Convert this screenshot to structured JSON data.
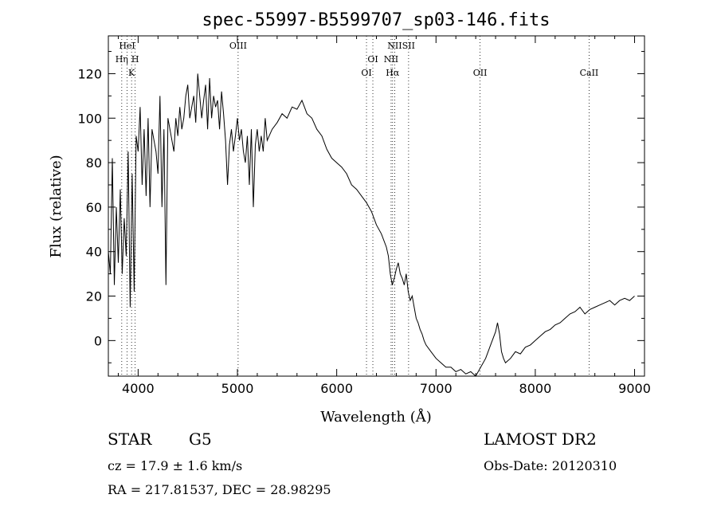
{
  "chart_data": {
    "type": "line",
    "title": "spec-55997-B5599707_sp03-146.fits",
    "xlabel": "Wavelength (Å)",
    "ylabel": "Flux (relative)",
    "xlim": [
      3700,
      9100
    ],
    "ylim": [
      -16,
      137
    ],
    "x_ticks": [
      4000,
      5000,
      6000,
      7000,
      8000,
      9000
    ],
    "y_ticks": [
      0,
      20,
      40,
      60,
      80,
      100,
      120
    ],
    "grid": false,
    "legend": "none",
    "series": [
      {
        "x": [
          3700,
          3720,
          3740,
          3760,
          3780,
          3800,
          3820,
          3840,
          3860,
          3880,
          3900,
          3920,
          3940,
          3960,
          3980,
          4000,
          4020,
          4040,
          4060,
          4080,
          4100,
          4120,
          4140,
          4160,
          4180,
          4200,
          4220,
          4240,
          4260,
          4280,
          4300,
          4320,
          4340,
          4360,
          4380,
          4400,
          4420,
          4440,
          4460,
          4480,
          4500,
          4520,
          4540,
          4560,
          4580,
          4600,
          4620,
          4640,
          4660,
          4680,
          4700,
          4720,
          4740,
          4760,
          4780,
          4800,
          4820,
          4840,
          4860,
          4880,
          4900,
          4920,
          4940,
          4960,
          4980,
          5000,
          5020,
          5040,
          5060,
          5080,
          5100,
          5120,
          5140,
          5160,
          5180,
          5200,
          5220,
          5240,
          5260,
          5280,
          5300,
          5350,
          5400,
          5450,
          5500,
          5550,
          5600,
          5650,
          5700,
          5750,
          5800,
          5850,
          5900,
          5950,
          6000,
          6050,
          6100,
          6150,
          6200,
          6250,
          6300,
          6350,
          6400,
          6450,
          6500,
          6520,
          6540,
          6560,
          6580,
          6600,
          6620,
          6640,
          6660,
          6680,
          6700,
          6720,
          6740,
          6760,
          6780,
          6800,
          6820,
          6840,
          6860,
          6880,
          6900,
          6950,
          7000,
          7050,
          7100,
          7150,
          7200,
          7250,
          7300,
          7350,
          7400,
          7450,
          7500,
          7550,
          7600,
          7620,
          7640,
          7660,
          7680,
          7700,
          7750,
          7800,
          7850,
          7900,
          7950,
          8000,
          8050,
          8100,
          8150,
          8200,
          8250,
          8300,
          8350,
          8400,
          8450,
          8500,
          8550,
          8600,
          8650,
          8700,
          8750,
          8800,
          8850,
          8900,
          8950,
          9000
        ],
        "y": [
          40,
          30,
          82,
          25,
          60,
          35,
          68,
          30,
          55,
          38,
          85,
          15,
          75,
          22,
          92,
          85,
          105,
          70,
          95,
          65,
          100,
          60,
          95,
          90,
          85,
          75,
          110,
          60,
          95,
          25,
          100,
          95,
          90,
          85,
          100,
          92,
          105,
          95,
          100,
          110,
          115,
          100,
          105,
          110,
          98,
          120,
          110,
          100,
          108,
          115,
          95,
          118,
          100,
          110,
          105,
          108,
          95,
          112,
          102,
          90,
          70,
          88,
          95,
          85,
          92,
          100,
          90,
          95,
          85,
          80,
          92,
          70,
          95,
          60,
          88,
          95,
          85,
          92,
          85,
          100,
          90,
          95,
          98,
          102,
          100,
          105,
          104,
          108,
          102,
          100,
          95,
          92,
          86,
          82,
          80,
          78,
          75,
          70,
          68,
          65,
          62,
          58,
          52,
          48,
          42,
          38,
          30,
          25,
          28,
          32,
          35,
          30,
          28,
          25,
          30,
          22,
          18,
          20,
          15,
          10,
          8,
          5,
          3,
          0,
          -2,
          -5,
          -8,
          -10,
          -12,
          -12,
          -14,
          -13,
          -15,
          -14,
          -16,
          -12,
          -8,
          -2,
          4,
          8,
          3,
          -5,
          -8,
          -10,
          -8,
          -5,
          -6,
          -3,
          -2,
          0,
          2,
          4,
          5,
          7,
          8,
          10,
          12,
          13,
          15,
          12,
          14,
          15,
          16,
          17,
          18,
          16,
          18,
          19,
          18,
          20
        ]
      }
    ],
    "line_markers": [
      {
        "wavelength": 3889,
        "label": "HeI",
        "row": 0
      },
      {
        "wavelength": 3835,
        "label": "Hη",
        "row": 1
      },
      {
        "wavelength": 3970,
        "label": "H",
        "row": 1
      },
      {
        "wavelength": 3934,
        "label": "K",
        "row": 2
      },
      {
        "wavelength": 5007,
        "label": "OIII",
        "row": 0
      },
      {
        "wavelength": 6364,
        "label": "OI",
        "row": 1
      },
      {
        "wavelength": 6300,
        "label": "OI",
        "row": 2
      },
      {
        "wavelength": 6584,
        "label": "NII",
        "row": 0
      },
      {
        "wavelength": 6548,
        "label": "NII",
        "row": 1
      },
      {
        "wavelength": 6563,
        "label": "Hα",
        "row": 2
      },
      {
        "wavelength": 6724,
        "label": "SII",
        "row": 0
      },
      {
        "wavelength": 7444,
        "label": "OII",
        "row": 2
      },
      {
        "wavelength": 8542,
        "label": "CaII",
        "row": 2
      }
    ]
  },
  "info": {
    "object_class": "STAR",
    "subclass": "G5",
    "survey": "LAMOST DR2",
    "cz": "cz = 17.9 ± 1.6 km/s",
    "obs_date": "Obs-Date: 20120310",
    "coords": "RA = 217.81537, DEC =  28.98295"
  }
}
